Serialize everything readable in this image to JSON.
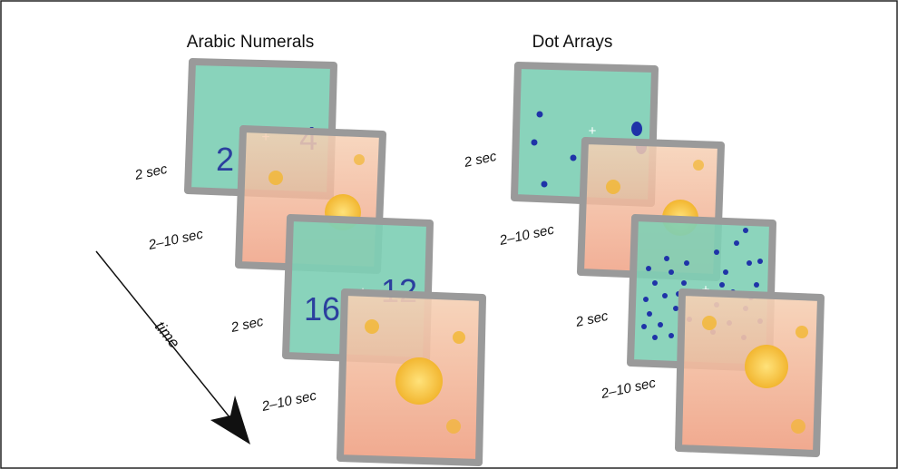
{
  "columns": [
    {
      "title": "Arabic Numerals",
      "frames": [
        {
          "type": "stimulus",
          "duration": "2 sec",
          "left_value": "2",
          "fixation": "+",
          "right_value": "4"
        },
        {
          "type": "isi",
          "duration": "2–10 sec"
        },
        {
          "type": "stimulus",
          "duration": "2 sec",
          "left_value": "16",
          "fixation": "+",
          "right_value": "12"
        },
        {
          "type": "isi",
          "duration": "2–10 sec"
        }
      ]
    },
    {
      "title": "Dot  Arrays",
      "frames": [
        {
          "type": "stimulus",
          "duration": "2 sec",
          "fixation": "+",
          "left_dot_count": 4,
          "right_dot_count": 2
        },
        {
          "type": "isi",
          "duration": "2–10 sec"
        },
        {
          "type": "stimulus",
          "duration": "2 sec",
          "fixation": "+",
          "left_dot_count": 16,
          "right_dot_count": 16
        },
        {
          "type": "isi",
          "duration": "2–10 sec"
        }
      ]
    }
  ],
  "time_axis": {
    "label": "time"
  },
  "colors": {
    "stimulus_fill": "#7fcfb5",
    "frame_border": "#9a9a9a",
    "digit_color": "#2b3f9e",
    "dot_color": "#1f33a8",
    "isi_sky": "#f3c1a2",
    "isi_flower": "#f2b630"
  }
}
